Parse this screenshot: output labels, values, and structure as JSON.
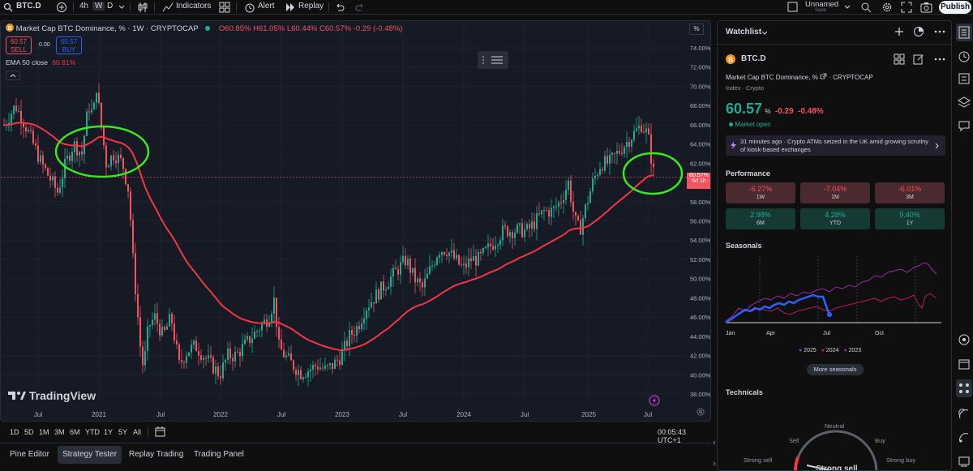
{
  "topbar": {
    "symbol": "BTC.D",
    "interval_4h": "4h",
    "interval_w": "W",
    "interval_d": "D",
    "indicators": "Indicators",
    "alert": "Alert",
    "replay": "Replay",
    "layout_name": "Unnamed",
    "layout_status": "Save",
    "publish": "Publish"
  },
  "legend": {
    "title": "Market Cap BTC Dominance, % · 1W · CRYPTOCAP",
    "open": "O60.85%",
    "high": "H61.05%",
    "low": "L60.44%",
    "close": "C60.57%",
    "change": "-0.29 (-0.48%)",
    "sell_price": "60.57",
    "sell_label": "SELL",
    "spread": "0.00",
    "buy_price": "60.57",
    "buy_label": "BUY",
    "ema": "EMA 50 close",
    "ema_value": "60.81%"
  },
  "price_axis": {
    "unit": "%",
    "current_price": "60.57%",
    "countdown": "6d 1h",
    "ticks": [
      "74.00%",
      "72.00%",
      "70.00%",
      "68.00%",
      "66.00%",
      "64.00%",
      "62.00%",
      "58.00%",
      "56.00%",
      "54.00%",
      "52.00%",
      "50.00%",
      "48.00%",
      "46.00%",
      "44.00%",
      "42.00%",
      "40.00%",
      "38.00%"
    ]
  },
  "time_axis": {
    "ticks": [
      "Jul",
      "2021",
      "Jul",
      "2022",
      "Jul",
      "2023",
      "Jul",
      "2024",
      "Jul",
      "2025",
      "Jul"
    ]
  },
  "watermark": "TradingView",
  "timeframes": [
    "1D",
    "5D",
    "1M",
    "3M",
    "6M",
    "YTD",
    "1Y",
    "5Y",
    "All"
  ],
  "clock": "00:05:43 UTC+1",
  "bottom_tabs": [
    "Pine Editor",
    "Strategy Tester",
    "Replay Trading",
    "Trading Panel"
  ],
  "watchlist": {
    "title": "Watchlist",
    "symbol": "BTC.D",
    "full_name": "Market Cap BTC Dominance, %",
    "exchange": "CRYPTOCAP",
    "category": "Index · Crypto",
    "price": "60.57",
    "price_unit": "%",
    "change": "-0.29",
    "change_pct": "-0.48%",
    "market_status": "Market open",
    "news": "31 minutes ago · Crypto ATMs seized in the UK amid growing scrutiny of kiosk-based exchanges",
    "performance_title": "Performance",
    "performance": [
      {
        "value": "-6.27%",
        "label": "1W",
        "tone": "red"
      },
      {
        "value": "-7.04%",
        "label": "1M",
        "tone": "red"
      },
      {
        "value": "-6.01%",
        "label": "3M",
        "tone": "red"
      },
      {
        "value": "2.98%",
        "label": "6M",
        "tone": "green"
      },
      {
        "value": "4.28%",
        "label": "YTD",
        "tone": "green"
      },
      {
        "value": "9.40%",
        "label": "1Y",
        "tone": "green"
      }
    ],
    "seasonals_title": "Seasonals",
    "seasonal_months": [
      "Jan",
      "Apr",
      "Jul",
      "Oct"
    ],
    "seasonal_legend": [
      "2025",
      "2024",
      "2023"
    ],
    "more_seasonals": "More seasonals",
    "technicals_title": "Technicals",
    "gauge_labels": [
      "Neutral",
      "Sell",
      "Buy",
      "Strong sell",
      "Strong buy"
    ],
    "gauge_result": "Strong sell"
  },
  "colors": {
    "up": "#22ab94",
    "down": "#f7525f",
    "ema": "#f23645",
    "highlight": "#3ae81d",
    "s2025": "#2962ff",
    "s2024": "#c2185b",
    "s2023": "#9c27b0"
  }
}
